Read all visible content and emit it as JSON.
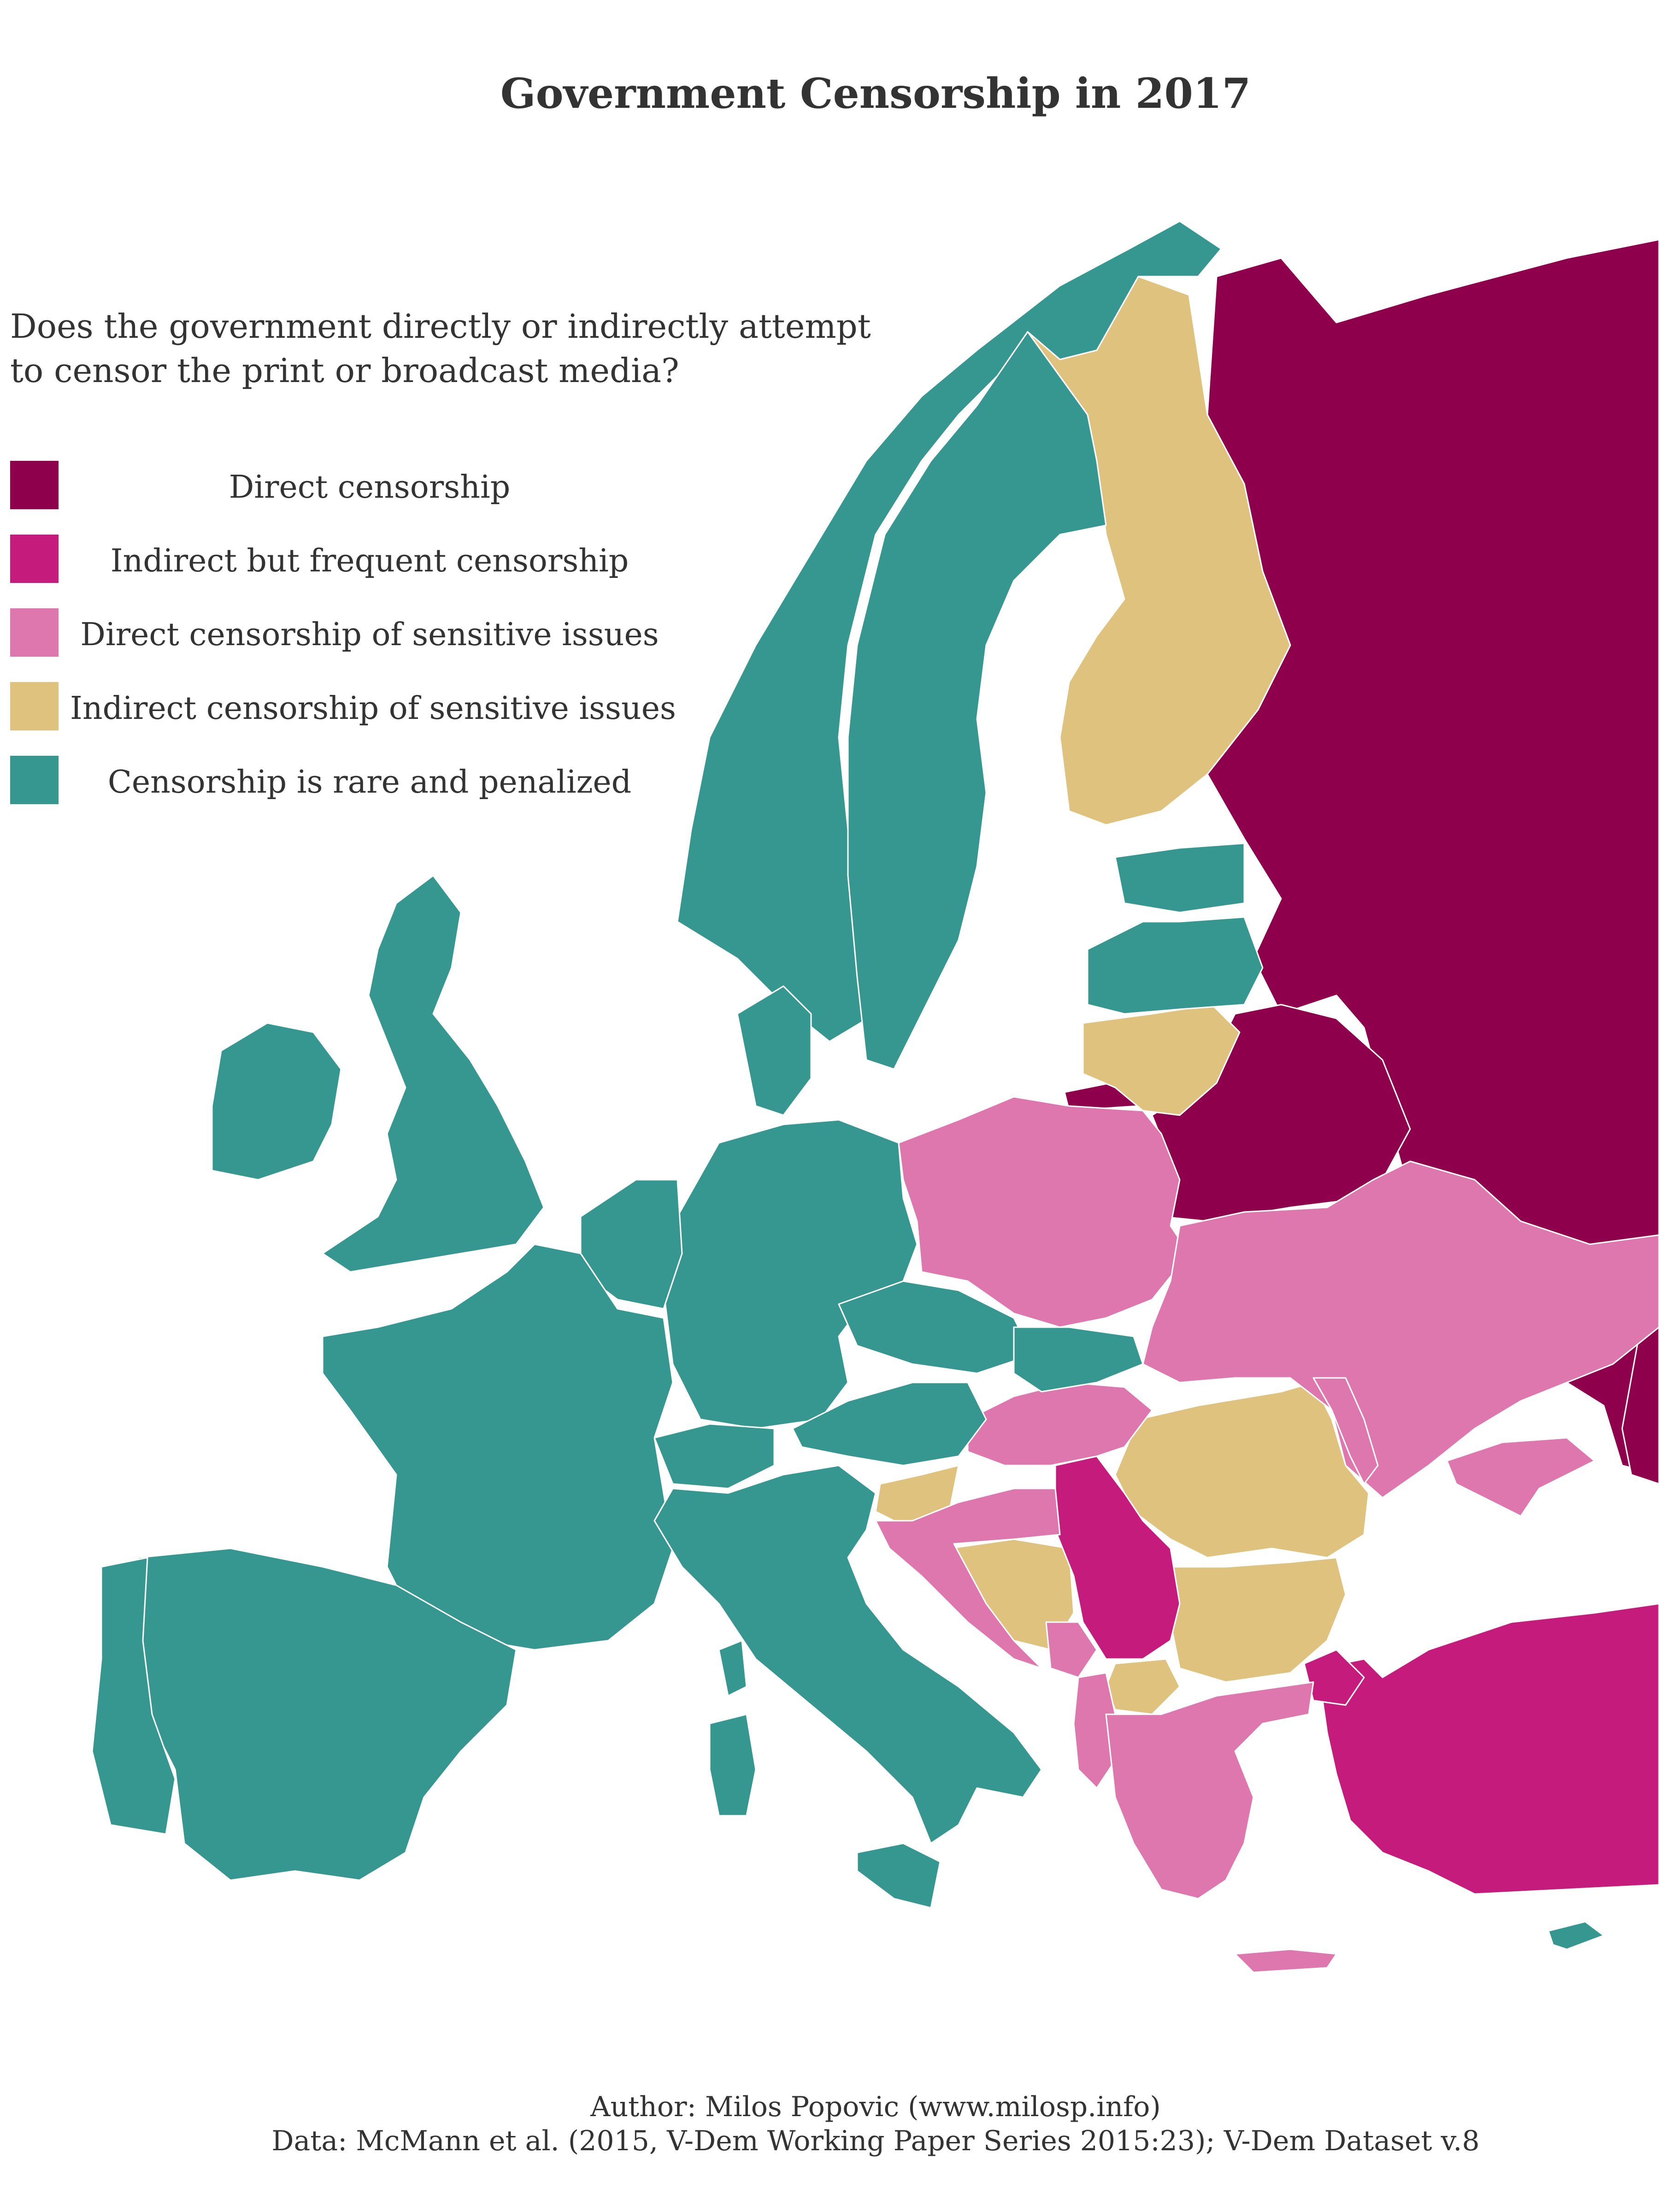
{
  "title": "Government Censorship in 2017",
  "question": {
    "line1": "Does the government directly or indirectly attempt",
    "line2": "to censor the print or broadcast media?"
  },
  "legend": [
    {
      "label": "Direct censorship",
      "color": "#8e004b"
    },
    {
      "label": "Indirect but frequent censorship",
      "color": "#c51b7d"
    },
    {
      "label": "Direct censorship of sensitive issues",
      "color": "#de77ae"
    },
    {
      "label": "Indirect censorship of sensitive issues",
      "color": "#dfc27d"
    },
    {
      "label": "Censorship is rare and penalized",
      "color": "#35978f"
    }
  ],
  "credits": {
    "author": "Author: Milos Popovic (www.milosp.info)",
    "data": "Data: McMann et al. (2015, V-Dem Working Paper Series 2015:23); V-Dem Dataset v.8"
  }
}
